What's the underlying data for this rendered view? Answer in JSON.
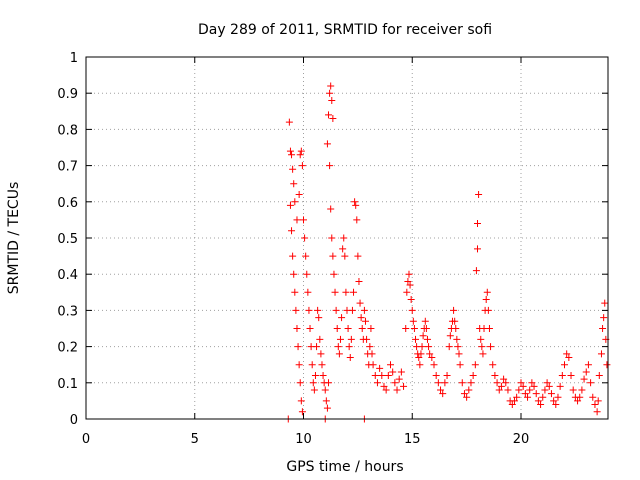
{
  "chart_data": {
    "type": "scatter",
    "title": "Day 289 of 2011, SRMTID for receiver sofi",
    "xlabel": "GPS time / hours",
    "ylabel": "SRMTID / TECUs",
    "xlim": [
      0,
      24
    ],
    "ylim": [
      0,
      1
    ],
    "x_ticks": [
      "0",
      "5",
      "10",
      "15",
      "20"
    ],
    "y_ticks": [
      "0",
      "0.1",
      "0.2",
      "0.3",
      "0.4",
      "0.5",
      "0.6",
      "0.7",
      "0.8",
      "0.9",
      "1"
    ],
    "grid": true,
    "marker": "+",
    "color": "#ff0000",
    "series": [
      {
        "name": "SRMTID",
        "points": [
          [
            9.3,
            0.0
          ],
          [
            11.0,
            0.0
          ],
          [
            12.8,
            0.0
          ],
          [
            9.35,
            0.82
          ],
          [
            9.4,
            0.74
          ],
          [
            9.45,
            0.73
          ],
          [
            9.5,
            0.69
          ],
          [
            9.55,
            0.65
          ],
          [
            9.6,
            0.6
          ],
          [
            9.4,
            0.59
          ],
          [
            9.45,
            0.52
          ],
          [
            9.5,
            0.45
          ],
          [
            9.55,
            0.4
          ],
          [
            9.6,
            0.35
          ],
          [
            9.65,
            0.3
          ],
          [
            9.7,
            0.25
          ],
          [
            9.75,
            0.2
          ],
          [
            9.8,
            0.15
          ],
          [
            9.85,
            0.1
          ],
          [
            9.9,
            0.05
          ],
          [
            9.95,
            0.02
          ],
          [
            9.7,
            0.55
          ],
          [
            9.8,
            0.62
          ],
          [
            9.85,
            0.73
          ],
          [
            9.9,
            0.74
          ],
          [
            9.95,
            0.7
          ],
          [
            10.0,
            0.55
          ],
          [
            10.05,
            0.5
          ],
          [
            10.1,
            0.45
          ],
          [
            10.15,
            0.4
          ],
          [
            10.2,
            0.35
          ],
          [
            10.25,
            0.3
          ],
          [
            10.3,
            0.25
          ],
          [
            10.35,
            0.2
          ],
          [
            10.4,
            0.15
          ],
          [
            10.45,
            0.1
          ],
          [
            10.5,
            0.08
          ],
          [
            10.55,
            0.12
          ],
          [
            10.6,
            0.2
          ],
          [
            10.65,
            0.3
          ],
          [
            10.7,
            0.28
          ],
          [
            10.75,
            0.22
          ],
          [
            10.8,
            0.18
          ],
          [
            10.85,
            0.15
          ],
          [
            10.9,
            0.12
          ],
          [
            10.95,
            0.1
          ],
          [
            11.0,
            0.08
          ],
          [
            11.05,
            0.05
          ],
          [
            11.1,
            0.03
          ],
          [
            11.15,
            0.1
          ],
          [
            11.1,
            0.76
          ],
          [
            11.15,
            0.84
          ],
          [
            11.2,
            0.9
          ],
          [
            11.25,
            0.92
          ],
          [
            11.3,
            0.88
          ],
          [
            11.35,
            0.83
          ],
          [
            11.2,
            0.7
          ],
          [
            11.25,
            0.58
          ],
          [
            11.3,
            0.5
          ],
          [
            11.35,
            0.45
          ],
          [
            11.4,
            0.4
          ],
          [
            11.45,
            0.35
          ],
          [
            11.5,
            0.3
          ],
          [
            11.55,
            0.25
          ],
          [
            11.6,
            0.2
          ],
          [
            11.65,
            0.18
          ],
          [
            11.7,
            0.22
          ],
          [
            11.75,
            0.28
          ],
          [
            11.8,
            0.47
          ],
          [
            11.85,
            0.5
          ],
          [
            11.9,
            0.45
          ],
          [
            11.95,
            0.35
          ],
          [
            12.0,
            0.3
          ],
          [
            12.05,
            0.25
          ],
          [
            12.1,
            0.2
          ],
          [
            12.15,
            0.17
          ],
          [
            12.2,
            0.22
          ],
          [
            12.25,
            0.3
          ],
          [
            12.3,
            0.35
          ],
          [
            12.35,
            0.6
          ],
          [
            12.4,
            0.59
          ],
          [
            12.45,
            0.55
          ],
          [
            12.5,
            0.45
          ],
          [
            12.55,
            0.38
          ],
          [
            12.6,
            0.32
          ],
          [
            12.65,
            0.28
          ],
          [
            12.7,
            0.25
          ],
          [
            12.75,
            0.22
          ],
          [
            12.8,
            0.3
          ],
          [
            12.85,
            0.27
          ],
          [
            12.9,
            0.22
          ],
          [
            12.95,
            0.18
          ],
          [
            13.0,
            0.15
          ],
          [
            13.05,
            0.2
          ],
          [
            13.1,
            0.25
          ],
          [
            13.15,
            0.18
          ],
          [
            13.2,
            0.15
          ],
          [
            13.3,
            0.12
          ],
          [
            13.4,
            0.1
          ],
          [
            13.5,
            0.14
          ],
          [
            13.6,
            0.12
          ],
          [
            13.7,
            0.09
          ],
          [
            13.8,
            0.08
          ],
          [
            13.9,
            0.12
          ],
          [
            14.0,
            0.15
          ],
          [
            14.1,
            0.13
          ],
          [
            14.2,
            0.1
          ],
          [
            14.3,
            0.08
          ],
          [
            14.4,
            0.11
          ],
          [
            14.5,
            0.13
          ],
          [
            14.6,
            0.09
          ],
          [
            14.7,
            0.25
          ],
          [
            14.75,
            0.35
          ],
          [
            14.8,
            0.38
          ],
          [
            14.85,
            0.4
          ],
          [
            14.9,
            0.37
          ],
          [
            14.95,
            0.33
          ],
          [
            15.0,
            0.3
          ],
          [
            15.05,
            0.27
          ],
          [
            15.1,
            0.25
          ],
          [
            15.15,
            0.22
          ],
          [
            15.2,
            0.2
          ],
          [
            15.25,
            0.18
          ],
          [
            15.3,
            0.17
          ],
          [
            15.35,
            0.15
          ],
          [
            15.4,
            0.18
          ],
          [
            15.45,
            0.2
          ],
          [
            15.5,
            0.23
          ],
          [
            15.55,
            0.25
          ],
          [
            15.6,
            0.27
          ],
          [
            15.65,
            0.25
          ],
          [
            15.7,
            0.22
          ],
          [
            15.75,
            0.2
          ],
          [
            15.8,
            0.18
          ],
          [
            15.9,
            0.17
          ],
          [
            16.0,
            0.15
          ],
          [
            16.1,
            0.12
          ],
          [
            16.2,
            0.1
          ],
          [
            16.3,
            0.08
          ],
          [
            16.4,
            0.07
          ],
          [
            16.5,
            0.1
          ],
          [
            16.6,
            0.12
          ],
          [
            16.7,
            0.2
          ],
          [
            16.75,
            0.23
          ],
          [
            16.8,
            0.25
          ],
          [
            16.85,
            0.27
          ],
          [
            16.9,
            0.3
          ],
          [
            16.95,
            0.27
          ],
          [
            17.0,
            0.25
          ],
          [
            17.05,
            0.22
          ],
          [
            17.1,
            0.2
          ],
          [
            17.15,
            0.18
          ],
          [
            17.2,
            0.15
          ],
          [
            17.3,
            0.1
          ],
          [
            17.4,
            0.07
          ],
          [
            17.5,
            0.06
          ],
          [
            17.6,
            0.08
          ],
          [
            17.7,
            0.1
          ],
          [
            17.8,
            0.12
          ],
          [
            17.9,
            0.15
          ],
          [
            17.95,
            0.41
          ],
          [
            18.0,
            0.47
          ],
          [
            18.0,
            0.54
          ],
          [
            18.05,
            0.62
          ],
          [
            18.1,
            0.25
          ],
          [
            18.15,
            0.22
          ],
          [
            18.2,
            0.2
          ],
          [
            18.25,
            0.18
          ],
          [
            18.3,
            0.25
          ],
          [
            18.35,
            0.3
          ],
          [
            18.4,
            0.33
          ],
          [
            18.45,
            0.35
          ],
          [
            18.5,
            0.3
          ],
          [
            18.55,
            0.25
          ],
          [
            18.6,
            0.2
          ],
          [
            18.7,
            0.15
          ],
          [
            18.8,
            0.12
          ],
          [
            18.9,
            0.1
          ],
          [
            19.0,
            0.08
          ],
          [
            19.1,
            0.09
          ],
          [
            19.2,
            0.11
          ],
          [
            19.3,
            0.1
          ],
          [
            19.4,
            0.08
          ],
          [
            19.5,
            0.05
          ],
          [
            19.6,
            0.04
          ],
          [
            19.7,
            0.05
          ],
          [
            19.8,
            0.06
          ],
          [
            19.9,
            0.08
          ],
          [
            20.0,
            0.1
          ],
          [
            20.1,
            0.09
          ],
          [
            20.2,
            0.07
          ],
          [
            20.3,
            0.06
          ],
          [
            20.4,
            0.08
          ],
          [
            20.5,
            0.1
          ],
          [
            20.6,
            0.09
          ],
          [
            20.7,
            0.07
          ],
          [
            20.8,
            0.05
          ],
          [
            20.9,
            0.04
          ],
          [
            21.0,
            0.06
          ],
          [
            21.1,
            0.08
          ],
          [
            21.2,
            0.1
          ],
          [
            21.3,
            0.09
          ],
          [
            21.4,
            0.07
          ],
          [
            21.5,
            0.05
          ],
          [
            21.6,
            0.04
          ],
          [
            21.7,
            0.06
          ],
          [
            21.8,
            0.09
          ],
          [
            21.9,
            0.12
          ],
          [
            22.0,
            0.15
          ],
          [
            22.1,
            0.18
          ],
          [
            22.2,
            0.17
          ],
          [
            22.3,
            0.12
          ],
          [
            22.4,
            0.08
          ],
          [
            22.5,
            0.06
          ],
          [
            22.6,
            0.05
          ],
          [
            22.7,
            0.06
          ],
          [
            22.8,
            0.08
          ],
          [
            22.9,
            0.11
          ],
          [
            23.0,
            0.13
          ],
          [
            23.1,
            0.15
          ],
          [
            23.2,
            0.1
          ],
          [
            23.3,
            0.06
          ],
          [
            23.4,
            0.04
          ],
          [
            23.5,
            0.02
          ],
          [
            23.55,
            0.05
          ],
          [
            23.6,
            0.12
          ],
          [
            23.7,
            0.18
          ],
          [
            23.75,
            0.25
          ],
          [
            23.8,
            0.28
          ],
          [
            23.85,
            0.32
          ],
          [
            23.9,
            0.22
          ],
          [
            23.95,
            0.15
          ]
        ]
      }
    ]
  }
}
